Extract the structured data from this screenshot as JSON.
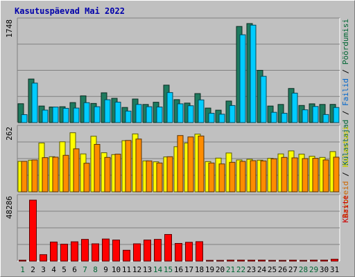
{
  "title": "Kasutuspäevad Mai 2022",
  "chart_data": {
    "type": "bar",
    "categories": [
      "1",
      "2",
      "3",
      "4",
      "5",
      "6",
      "7",
      "8",
      "9",
      "10",
      "11",
      "12",
      "13",
      "14",
      "15",
      "16",
      "17",
      "18",
      "19",
      "20",
      "21",
      "22",
      "23",
      "24",
      "25",
      "26",
      "27",
      "28",
      "29",
      "30",
      "31"
    ],
    "weekend_days": [
      "1",
      "7",
      "8",
      "14",
      "15",
      "21",
      "22",
      "28",
      "29"
    ],
    "colors": {
      "weekday_label": "#000000",
      "weekend_label": "#006633"
    },
    "panels": [
      {
        "id": "top",
        "ytick": "1748",
        "ymax": 1748,
        "series": [
          {
            "name": "Külastajad",
            "color": "#1e7a5e",
            "values": [
              333,
              769,
              292,
              275,
              280,
              353,
              472,
              338,
              526,
              428,
              267,
              416,
              320,
              359,
              661,
              405,
              344,
              512,
              256,
              219,
              380,
              1697,
              1748,
              923,
              292,
              320,
              602,
              302,
              331,
              320,
              321
            ]
          },
          {
            "name": "Failid",
            "color": "#00ccff",
            "values": [
              140,
              697,
              220,
              274,
              252,
              256,
              351,
              280,
              403,
              361,
              203,
              320,
              280,
              275,
              530,
              331,
              297,
              400,
              164,
              148,
              301,
              1550,
              1720,
              817,
              181,
              164,
              520,
              225,
              284,
              142,
              266
            ]
          }
        ],
        "right_label": [
          {
            "text": "Külastajad",
            "color": "#006633"
          },
          {
            "text": " / ",
            "color": "#000000"
          },
          {
            "text": "Failid",
            "color": "#0066cc"
          },
          {
            "text": " / ",
            "color": "#000000"
          },
          {
            "text": "Pöördumisi",
            "color": "#006633"
          }
        ]
      },
      {
        "id": "mid",
        "ytick": "262",
        "ymax": 262,
        "series": [
          {
            "name": "Arvuteid",
            "color": "#ffff00",
            "values": [
              131,
              136,
              210,
              151,
              215,
              254,
              163,
              239,
              168,
              160,
              220,
              249,
              133,
              129,
              150,
              194,
              210,
              248,
              130,
              145,
              167,
              137,
              140,
              136,
              144,
              163,
              176,
              162,
              153,
              148,
              173
            ]
          },
          {
            "name": "Külastusi",
            "color": "#ff8c00",
            "values": [
              131,
              137,
              147,
              149,
              157,
              185,
              123,
              204,
              148,
              162,
              221,
              227,
              133,
              124,
              151,
              242,
              236,
              240,
              124,
              120,
              127,
              131,
              134,
              133,
              142,
              148,
              146,
              143,
              144,
              137,
              149
            ]
          }
        ],
        "right_label": [
          {
            "text": "Arvuteid",
            "color": "#cc6600"
          },
          {
            "text": " / ",
            "color": "#000000"
          },
          {
            "text": "Külastusi",
            "color": "#cccc00"
          }
        ]
      },
      {
        "id": "bottom",
        "ytick": "48286",
        "ymax": 48286,
        "series": [
          {
            "name": "KBaite",
            "color": "#ff0000",
            "values": [
              700,
              48286,
              5100,
              15100,
              13400,
              15300,
              17200,
              13700,
              17500,
              16700,
              8600,
              13700,
              16700,
              17200,
              21100,
              14000,
              14900,
              15400,
              390,
              390,
              780,
              780,
              720,
              790,
              390,
              390,
              720,
              390,
              780,
              780,
              1480
            ]
          }
        ],
        "right_label": [
          {
            "text": "KBaite",
            "color": "#cc0000"
          }
        ]
      }
    ]
  }
}
